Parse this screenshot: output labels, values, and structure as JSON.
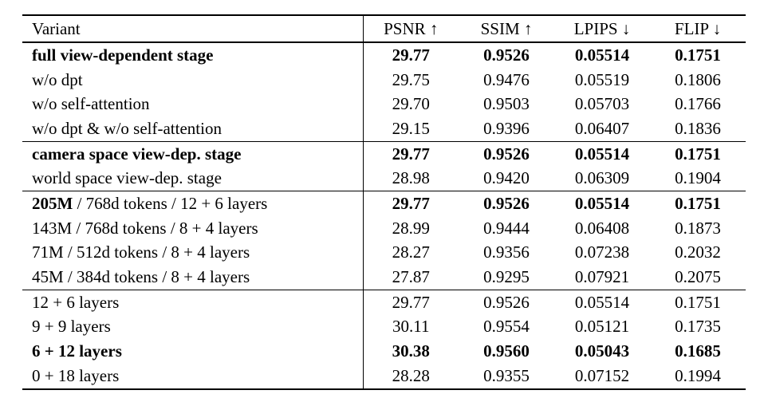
{
  "table": {
    "columns": [
      {
        "label": "Variant"
      },
      {
        "label": "PSNR ↑"
      },
      {
        "label": "SSIM ↑"
      },
      {
        "label": "LPIPS ↓"
      },
      {
        "label": "FLIP ↓"
      }
    ],
    "sections": [
      {
        "rows": [
          {
            "variant": "full view-dependent stage",
            "bold_variant": true,
            "bold_metrics": true,
            "metrics": [
              "29.77",
              "0.9526",
              "0.05514",
              "0.1751"
            ]
          },
          {
            "variant": "w/o dpt",
            "metrics": [
              "29.75",
              "0.9476",
              "0.05519",
              "0.1806"
            ]
          },
          {
            "variant": "w/o self-attention",
            "metrics": [
              "29.70",
              "0.9503",
              "0.05703",
              "0.1766"
            ]
          },
          {
            "variant": "w/o dpt & w/o self-attention",
            "metrics": [
              "29.15",
              "0.9396",
              "0.06407",
              "0.1836"
            ]
          }
        ]
      },
      {
        "rows": [
          {
            "variant": "camera space view-dep. stage",
            "bold_variant": true,
            "bold_metrics": true,
            "metrics": [
              "29.77",
              "0.9526",
              "0.05514",
              "0.1751"
            ]
          },
          {
            "variant": "world space view-dep. stage",
            "metrics": [
              "28.98",
              "0.9420",
              "0.06309",
              "0.1904"
            ]
          }
        ]
      },
      {
        "rows": [
          {
            "variant": "205M / 768d tokens / 12 + 6 layers",
            "bold_prefix": "205M",
            "bold_metrics": true,
            "metrics": [
              "29.77",
              "0.9526",
              "0.05514",
              "0.1751"
            ]
          },
          {
            "variant": "143M / 768d tokens / 8 + 4 layers",
            "metrics": [
              "28.99",
              "0.9444",
              "0.06408",
              "0.1873"
            ]
          },
          {
            "variant": "71M / 512d tokens / 8 + 4 layers",
            "metrics": [
              "28.27",
              "0.9356",
              "0.07238",
              "0.2032"
            ]
          },
          {
            "variant": "45M / 384d tokens / 8 + 4 layers",
            "metrics": [
              "27.87",
              "0.9295",
              "0.07921",
              "0.2075"
            ]
          }
        ]
      },
      {
        "rows": [
          {
            "variant": "12 + 6 layers",
            "metrics": [
              "29.77",
              "0.9526",
              "0.05514",
              "0.1751"
            ]
          },
          {
            "variant": "9 + 9 layers",
            "metrics": [
              "30.11",
              "0.9554",
              "0.05121",
              "0.1735"
            ]
          },
          {
            "variant": "6 + 12 layers",
            "bold_variant": true,
            "bold_metrics": true,
            "metrics": [
              "30.38",
              "0.9560",
              "0.05043",
              "0.1685"
            ]
          },
          {
            "variant": "0 + 18 layers",
            "metrics": [
              "28.28",
              "0.9355",
              "0.07152",
              "0.1994"
            ]
          }
        ]
      }
    ]
  }
}
